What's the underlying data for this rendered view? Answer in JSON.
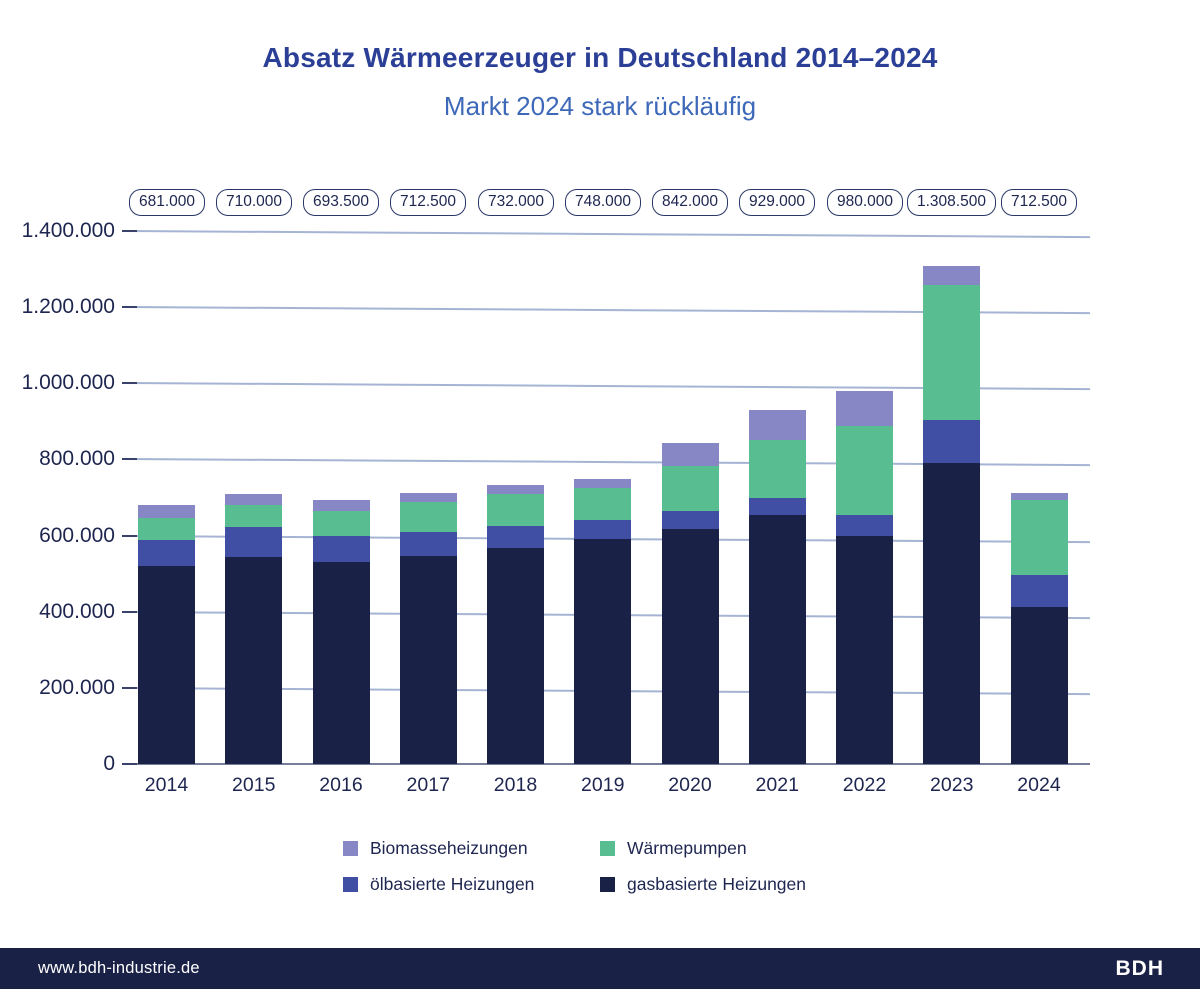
{
  "header": {
    "title": "Absatz Wärmeerzeuger in Deutschland 2014–2024",
    "subtitle": "Markt 2024 stark rückläufig"
  },
  "chart_data": {
    "type": "bar",
    "stacked": true,
    "title": "Absatz Wärmeerzeuger in Deutschland 2014–2024",
    "subtitle": "Markt 2024 stark rückläufig",
    "categories": [
      "2014",
      "2015",
      "2016",
      "2017",
      "2018",
      "2019",
      "2020",
      "2021",
      "2022",
      "2023",
      "2024"
    ],
    "series": [
      {
        "name": "gasbasierte Heizungen",
        "slug": "gasbasierte-heizungen",
        "color": "#1a2147",
        "values": [
          520000,
          544000,
          531000,
          547000,
          567000,
          592000,
          618500,
          653000,
          598000,
          790500,
          413000
        ]
      },
      {
        "name": "ölbasierte Heizungen",
        "slug": "oelbasierte-heizungen",
        "color": "#404fa3",
        "values": [
          69500,
          78500,
          67000,
          63500,
          59000,
          48000,
          45500,
          44500,
          55000,
          112500,
          84500
        ]
      },
      {
        "name": "Wärmepumpen",
        "slug": "waermepumpen",
        "color": "#58be92",
        "values": [
          56000,
          57000,
          66500,
          76500,
          84000,
          86000,
          120000,
          154000,
          236000,
          356000,
          195000
        ]
      },
      {
        "name": "Biomasseheizungen",
        "slug": "biomasseheizungen",
        "color": "#8787c6",
        "values": [
          35500,
          30500,
          29000,
          25500,
          22000,
          22000,
          58000,
          77500,
          91000,
          49500,
          20000
        ]
      }
    ],
    "totals": [
      681000,
      710000,
      693500,
      712500,
      732000,
      748000,
      842000,
      929000,
      980000,
      1308500,
      712500
    ],
    "total_labels": [
      "681.000",
      "710.000",
      "693.500",
      "712.500",
      "732.000",
      "748.000",
      "842.000",
      "929.000",
      "980.000",
      "1.308.500",
      "712.500"
    ],
    "xlabel": "",
    "ylabel": "",
    "ylim": [
      0,
      1400000
    ],
    "ytick_values": [
      0,
      200000,
      400000,
      600000,
      800000,
      1000000,
      1200000,
      1400000
    ],
    "ytick_labels": [
      "0",
      "200.000",
      "400.000",
      "600.000",
      "800.000",
      "1.000.000",
      "1.200.000",
      "1.400.000"
    ],
    "grid": true,
    "legend_position": "bottom"
  },
  "legend": {
    "items": [
      {
        "label": "Biomasseheizungen",
        "color": "#8787c6"
      },
      {
        "label": "Wärmepumpen",
        "color": "#58be92"
      },
      {
        "label": "ölbasierte Heizungen",
        "color": "#404fa3"
      },
      {
        "label": "gasbasierte Heizungen",
        "color": "#1a2147"
      }
    ]
  },
  "footer": {
    "website": "www.bdh-industrie.de",
    "logo": "BDH"
  },
  "colors": {
    "title": "#2b3f96",
    "subtitle": "#3e68b8",
    "axis_text": "#1e2650",
    "gridline": "#a6b4d4",
    "baseline": "#767e99",
    "footer_bg": "#1a2147",
    "footer_text": "#ffffff"
  }
}
